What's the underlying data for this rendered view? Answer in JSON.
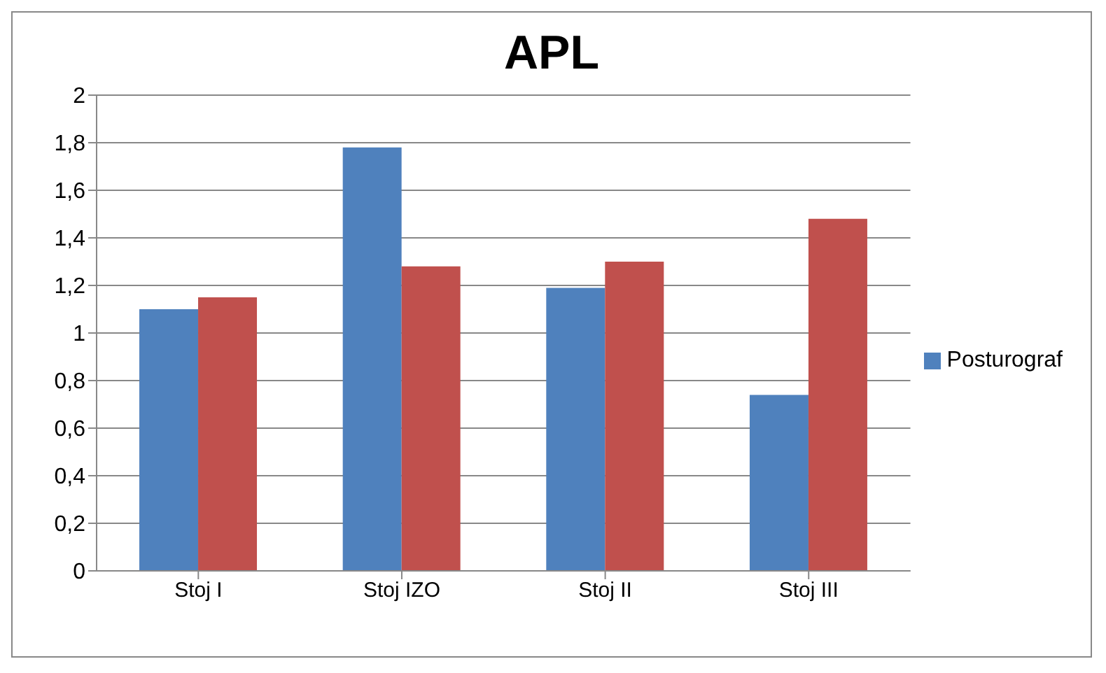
{
  "chart_data": {
    "type": "bar",
    "title": "APL",
    "categories": [
      "Stoj I",
      "Stoj IZO",
      "Stoj II",
      "Stoj III"
    ],
    "series": [
      {
        "name": "Posturograf",
        "color": "#4f81bd",
        "values": [
          1.1,
          1.78,
          1.19,
          0.74
        ]
      },
      {
        "color": "#c0504d",
        "values": [
          1.15,
          1.28,
          1.3,
          1.48
        ]
      }
    ],
    "ylim": [
      0,
      2
    ],
    "yticks": [
      0,
      {
        "value": 0.2,
        "label": "0,2"
      },
      {
        "value": 0.4,
        "label": "0,4"
      },
      {
        "value": 0.6,
        "label": "0,6"
      },
      {
        "value": 0.8,
        "label": "0,8"
      },
      1,
      {
        "value": 1.2,
        "label": "1,2"
      },
      {
        "value": 1.4,
        "label": "1,4"
      },
      {
        "value": 1.6,
        "label": "1,6"
      },
      {
        "value": 1.8,
        "label": "1,8"
      },
      2
    ],
    "grid": "y",
    "legend": "right"
  }
}
